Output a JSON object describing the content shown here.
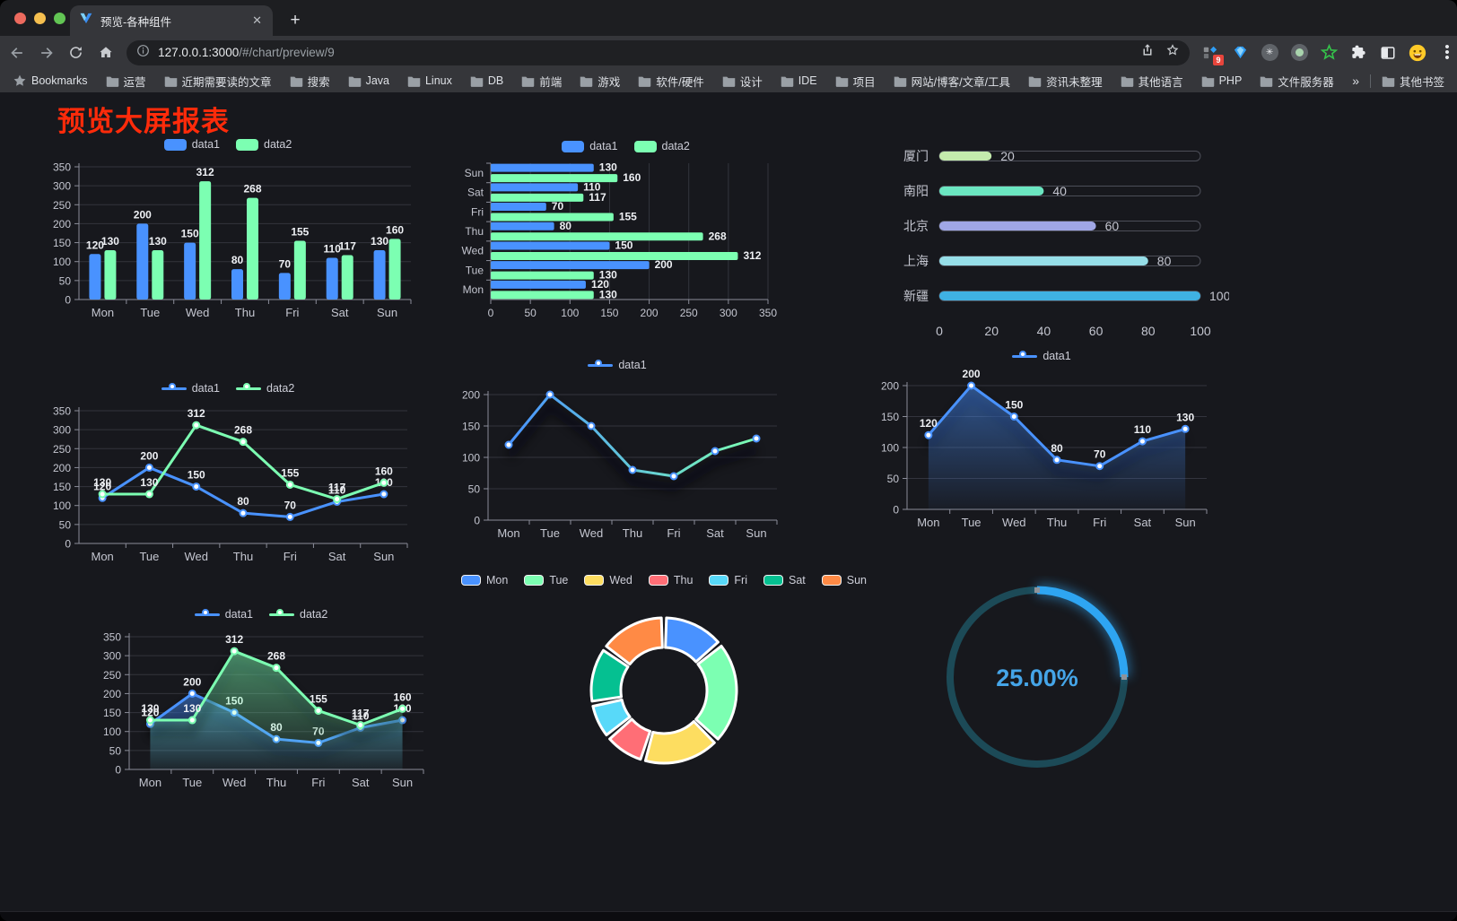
{
  "browser": {
    "tab": {
      "title": "预览-各种组件"
    },
    "url_host": "127.0.0.1:3000",
    "url_path": "/#/chart/preview/9",
    "bookmarks_label": "Bookmarks",
    "bookmarks": [
      "运营",
      "近期需要读的文章",
      "搜索",
      "Java",
      "Linux",
      "DB",
      "前端",
      "游戏",
      "软件/硬件",
      "设计",
      "IDE",
      "项目",
      "网站/博客/文章/工具",
      "资讯未整理",
      "其他语言",
      "PHP",
      "文件服务器"
    ],
    "bookmarks_overflow": "»",
    "other_bookmarks": "其他书签",
    "extension_badge": "9"
  },
  "page": {
    "heading": "预览大屏报表",
    "heading_color": "#ff2b0a"
  },
  "colors": {
    "data1": "#4992ff",
    "data2": "#7cffb2",
    "gauge_arc": "#2ea5f2",
    "gauge_track": "#1c4a57",
    "gauge_text": "#45a5e8"
  },
  "chart_data": [
    {
      "id": "grouped-bar",
      "type": "bar",
      "categories": [
        "Mon",
        "Tue",
        "Wed",
        "Thu",
        "Fri",
        "Sat",
        "Sun"
      ],
      "series": [
        {
          "name": "data1",
          "color": "#4992ff",
          "values": [
            120,
            200,
            150,
            80,
            70,
            110,
            130
          ]
        },
        {
          "name": "data2",
          "color": "#7cffb2",
          "values": [
            130,
            130,
            312,
            268,
            155,
            117,
            160
          ]
        }
      ],
      "ylim": [
        0,
        350
      ],
      "ytick_step": 50,
      "labels": true,
      "legend_position": "top",
      "grid": true
    },
    {
      "id": "horizontal-bar",
      "type": "bar-horizontal",
      "categories": [
        "Mon",
        "Tue",
        "Wed",
        "Thu",
        "Fri",
        "Sat",
        "Sun"
      ],
      "categories_top_to_bottom": [
        "Sun",
        "Sat",
        "Fri",
        "Thu",
        "Wed",
        "Tue",
        "Mon"
      ],
      "series": [
        {
          "name": "data1",
          "color": "#4992ff",
          "values": [
            120,
            200,
            150,
            80,
            70,
            110,
            130
          ]
        },
        {
          "name": "data2",
          "color": "#7cffb2",
          "values": [
            130,
            130,
            312,
            268,
            155,
            117,
            160
          ]
        }
      ],
      "xlim": [
        0,
        350
      ],
      "xtick_step": 50,
      "labels": true,
      "legend_position": "top",
      "grid": true
    },
    {
      "id": "city-progress",
      "type": "progress-bars",
      "rows": [
        {
          "label": "厦门",
          "value": 20,
          "color": "#c4ebad"
        },
        {
          "label": "南阳",
          "value": 40,
          "color": "#6be6c1"
        },
        {
          "label": "北京",
          "value": 60,
          "color": "#a0a7e6"
        },
        {
          "label": "上海",
          "value": 80,
          "color": "#96dee8"
        },
        {
          "label": "新疆",
          "value": 100,
          "color": "#3fb1e3"
        }
      ],
      "xlim": [
        0,
        100
      ],
      "xticks": [
        0,
        20,
        40,
        60,
        80,
        100
      ]
    },
    {
      "id": "two-line",
      "type": "line",
      "categories": [
        "Mon",
        "Tue",
        "Wed",
        "Thu",
        "Fri",
        "Sat",
        "Sun"
      ],
      "series": [
        {
          "name": "data1",
          "color": "#4992ff",
          "values": [
            120,
            200,
            150,
            80,
            70,
            110,
            130
          ]
        },
        {
          "name": "data2",
          "color": "#7cffb2",
          "values": [
            130,
            130,
            312,
            268,
            155,
            117,
            160
          ]
        }
      ],
      "ylim": [
        0,
        350
      ],
      "ytick_step": 50,
      "labels": true,
      "legend_position": "top",
      "grid": true
    },
    {
      "id": "gradient-line",
      "type": "line",
      "categories": [
        "Mon",
        "Tue",
        "Wed",
        "Thu",
        "Fri",
        "Sat",
        "Sun"
      ],
      "series": [
        {
          "name": "data1",
          "color_start": "#4992ff",
          "color_end": "#7cffb2",
          "values": [
            120,
            200,
            150,
            80,
            70,
            110,
            130
          ]
        }
      ],
      "ylim": [
        0,
        200
      ],
      "ytick_step": 50,
      "labels": false,
      "legend_position": "top",
      "grid": true
    },
    {
      "id": "single-area",
      "type": "area",
      "categories": [
        "Mon",
        "Tue",
        "Wed",
        "Thu",
        "Fri",
        "Sat",
        "Sun"
      ],
      "series": [
        {
          "name": "data1",
          "color": "#4992ff",
          "values": [
            120,
            200,
            150,
            80,
            70,
            110,
            130
          ]
        }
      ],
      "ylim": [
        0,
        200
      ],
      "ytick_step": 50,
      "labels": true,
      "legend_position": "top",
      "grid": true
    },
    {
      "id": "two-area",
      "type": "area",
      "categories": [
        "Mon",
        "Tue",
        "Wed",
        "Thu",
        "Fri",
        "Sat",
        "Sun"
      ],
      "series": [
        {
          "name": "data1",
          "color": "#4992ff",
          "values": [
            120,
            200,
            150,
            80,
            70,
            110,
            130
          ]
        },
        {
          "name": "data2",
          "color": "#7cffb2",
          "values": [
            130,
            130,
            312,
            268,
            155,
            117,
            160
          ]
        }
      ],
      "ylim": [
        0,
        350
      ],
      "ytick_step": 50,
      "labels": true,
      "legend_position": "top",
      "grid": true
    },
    {
      "id": "doughnut",
      "type": "pie",
      "labels": [
        "Mon",
        "Tue",
        "Wed",
        "Thu",
        "Fri",
        "Sat",
        "Sun"
      ],
      "values": [
        120,
        200,
        150,
        80,
        70,
        110,
        130
      ],
      "colors": [
        "#4992ff",
        "#7cffb2",
        "#fddd60",
        "#ff6e76",
        "#58d9f9",
        "#05c091",
        "#ff8a45"
      ],
      "inner_radius_ratio": 0.59,
      "legend_position": "top"
    },
    {
      "id": "gauge",
      "type": "gauge",
      "value": 25,
      "max": 100,
      "value_label": "25.00%"
    }
  ]
}
